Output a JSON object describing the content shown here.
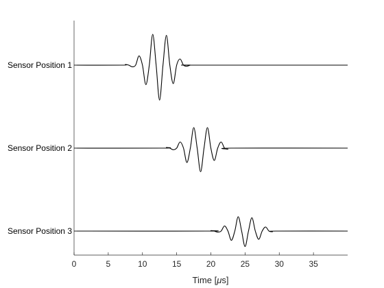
{
  "chart_data": {
    "type": "line",
    "xlabel_prefix": "Time [",
    "xlabel_unit_symbol": "μ",
    "xlabel_suffix": "s]",
    "xlim": [
      0,
      40
    ],
    "xticks": [
      0,
      5,
      10,
      15,
      20,
      25,
      30,
      35
    ],
    "grid": false,
    "series": [
      {
        "name": "Sensor Position 1",
        "x": [
          0,
          7.0,
          7.5,
          8.0,
          8.5,
          9.0,
          9.5,
          10.0,
          10.5,
          11.0,
          11.5,
          12.0,
          12.5,
          13.0,
          13.5,
          14.0,
          14.5,
          15.0,
          15.5,
          16.0,
          16.5,
          17.0,
          17.5,
          40
        ],
        "y": [
          0,
          0,
          0.03,
          0,
          -0.08,
          0,
          0.45,
          0,
          -0.95,
          0,
          1.5,
          0,
          -1.7,
          0,
          1.45,
          0,
          -0.9,
          0,
          0.3,
          0,
          -0.05,
          0,
          0,
          0
        ]
      },
      {
        "name": "Sensor Position 2",
        "x": [
          0,
          13.0,
          13.5,
          14.0,
          14.5,
          15.0,
          15.5,
          16.0,
          16.5,
          17.0,
          17.5,
          18.0,
          18.5,
          19.0,
          19.5,
          20.0,
          20.5,
          21.0,
          21.5,
          22.0,
          22.5,
          23.0,
          40
        ],
        "y": [
          0,
          0,
          0.03,
          0,
          -0.08,
          0,
          0.3,
          0,
          -0.7,
          0,
          1.0,
          0,
          -1.15,
          0,
          1.0,
          0,
          -0.6,
          0,
          0.3,
          0,
          -0.05,
          0,
          0
        ]
      },
      {
        "name": "Sensor Position 3",
        "x": [
          0,
          19.5,
          20.0,
          20.5,
          21.0,
          21.5,
          22.0,
          22.5,
          23.0,
          23.5,
          24.0,
          24.5,
          25.0,
          25.5,
          26.0,
          26.5,
          27.0,
          27.5,
          28.0,
          28.5,
          29.0,
          29.5,
          40
        ],
        "y": [
          0,
          0,
          0.02,
          0,
          -0.05,
          0,
          0.25,
          0,
          -0.45,
          0,
          0.7,
          0,
          -0.75,
          0,
          0.65,
          0,
          -0.4,
          0,
          0.2,
          0,
          -0.03,
          0,
          0
        ]
      }
    ]
  }
}
